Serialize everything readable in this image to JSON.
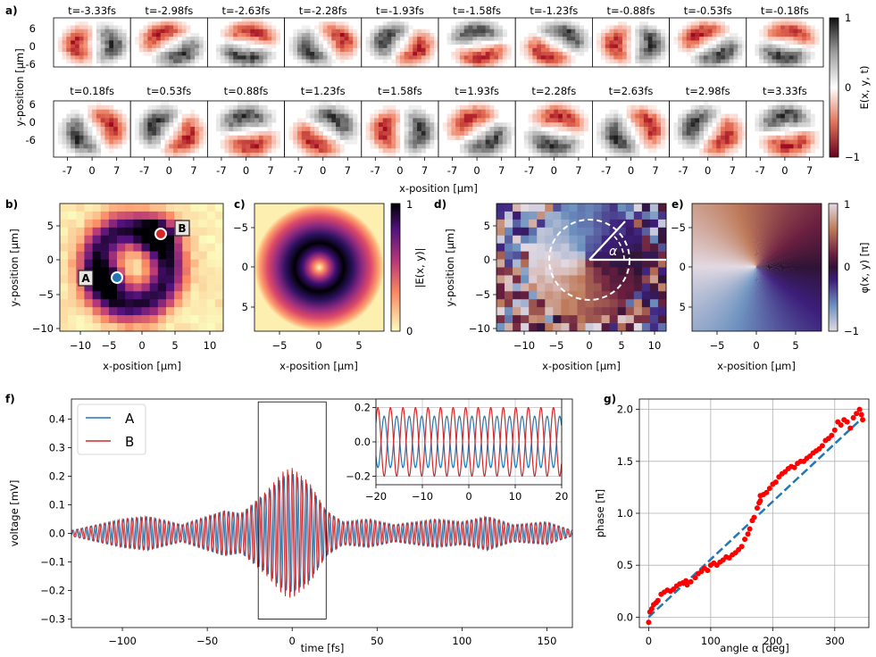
{
  "colors": {
    "series_a": "#1f77b4",
    "series_b": "#d62728",
    "scatter": "#ff0000",
    "fit": "#1f77b4",
    "grid": "#b0b0b0"
  },
  "panel_a": {
    "label": "a)",
    "row1_times": [
      "t=-3.33fs",
      "t=-2.98fs",
      "t=-2.63fs",
      "t=-2.28fs",
      "t=-1.93fs",
      "t=-1.58fs",
      "t=-1.23fs",
      "t=-0.88fs",
      "t=-0.53fs",
      "t=-0.18fs"
    ],
    "row2_times": [
      "t=0.18fs",
      "t=0.53fs",
      "t=0.88fs",
      "t=1.23fs",
      "t=1.58fs",
      "t=1.93fs",
      "t=2.28fs",
      "t=2.63fs",
      "t=2.98fs",
      "t=3.33fs"
    ],
    "y_ticks": [
      "6",
      "0",
      "-6"
    ],
    "x_ticks": [
      "-7",
      "0",
      "7"
    ],
    "ylabel": "y-position [μm]",
    "xlabel": "x-position [μm]",
    "colorbar_label": "E(x, y, t)",
    "colorbar_ticks": [
      "1",
      "0",
      "−1"
    ]
  },
  "panel_b": {
    "label": "b)",
    "x_ticks": [
      "−10",
      "−5",
      "0",
      "5",
      "10"
    ],
    "y_ticks": [
      "5",
      "0",
      "−5",
      "−10"
    ],
    "xlabel": "x-position [μm]",
    "ylabel": "y-position [μm]",
    "marker_a": "A",
    "marker_b": "B"
  },
  "panel_c": {
    "label": "c)",
    "x_ticks": [
      "−5",
      "0",
      "5"
    ],
    "y_ticks": [
      "−5",
      "0",
      "5"
    ],
    "xlabel": "x-position [μm]",
    "colorbar_label": "|E(x, y)|",
    "colorbar_ticks": [
      "1",
      "0"
    ]
  },
  "panel_d": {
    "label": "d)",
    "x_ticks": [
      "−10",
      "−5",
      "0",
      "5",
      "10"
    ],
    "y_ticks": [
      "5",
      "0",
      "−5",
      "−10"
    ],
    "xlabel": "x-position [μm]",
    "ylabel": "y-position [μm]",
    "angle_label": "α"
  },
  "panel_e": {
    "label": "e)",
    "x_ticks": [
      "−5",
      "0",
      "5"
    ],
    "y_ticks": [
      "−5",
      "0",
      "5"
    ],
    "xlabel": "x-position [μm]",
    "colorbar_label": "φ(x, y) [π]",
    "colorbar_ticks": [
      "1",
      "0",
      "−1"
    ]
  },
  "chart_data": [
    {
      "id": "f",
      "label": "f)",
      "type": "line",
      "xlabel": "time [fs]",
      "ylabel": "voltage [mV]",
      "xlim": [
        -130,
        165
      ],
      "ylim": [
        -0.33,
        0.47
      ],
      "x_ticks": [
        "−100",
        "−50",
        "0",
        "50",
        "100",
        "150"
      ],
      "y_ticks": [
        "0.4",
        "0.3",
        "0.2",
        "0.1",
        "0.0",
        "−0.1",
        "−0.2",
        "−0.3"
      ],
      "series": [
        {
          "name": "A",
          "period_fs": 2.7,
          "envelope": [
            [
              -130,
              0.01
            ],
            [
              -100,
              0.05
            ],
            [
              -85,
              0.06
            ],
            [
              -65,
              0.03
            ],
            [
              -50,
              0.06
            ],
            [
              -40,
              0.08
            ],
            [
              -30,
              0.07
            ],
            [
              -15,
              0.14
            ],
            [
              -5,
              0.2
            ],
            [
              0,
              0.21
            ],
            [
              10,
              0.17
            ],
            [
              20,
              0.08
            ],
            [
              30,
              0.04
            ],
            [
              45,
              0.05
            ],
            [
              60,
              0.03
            ],
            [
              85,
              0.05
            ],
            [
              100,
              0.04
            ],
            [
              115,
              0.06
            ],
            [
              130,
              0.03
            ],
            [
              150,
              0.04
            ],
            [
              165,
              0.01
            ]
          ]
        },
        {
          "name": "B",
          "period_fs": 2.7,
          "envelope": [
            [
              -130,
              0.01
            ],
            [
              -100,
              0.05
            ],
            [
              -85,
              0.06
            ],
            [
              -65,
              0.03
            ],
            [
              -50,
              0.06
            ],
            [
              -40,
              0.08
            ],
            [
              -30,
              0.07
            ],
            [
              -15,
              0.15
            ],
            [
              -5,
              0.22
            ],
            [
              0,
              0.23
            ],
            [
              10,
              0.18
            ],
            [
              20,
              0.08
            ],
            [
              30,
              0.04
            ],
            [
              45,
              0.05
            ],
            [
              60,
              0.03
            ],
            [
              85,
              0.05
            ],
            [
              100,
              0.04
            ],
            [
              115,
              0.06
            ],
            [
              130,
              0.03
            ],
            [
              150,
              0.04
            ],
            [
              165,
              0.01
            ]
          ]
        }
      ],
      "inset": {
        "xlim": [
          -20,
          20
        ],
        "ylim": [
          -0.25,
          0.25
        ],
        "x_ticks": [
          "−20",
          "−10",
          "0",
          "10",
          "20"
        ],
        "y_ticks": [
          "0.2",
          "0.0",
          "−0.2"
        ],
        "amplitude_a": 0.15,
        "amplitude_b": 0.2,
        "period_fs": 2.7
      },
      "zoom_box": {
        "x": [
          -20,
          20
        ],
        "y": [
          -0.3,
          0.46
        ]
      }
    },
    {
      "id": "g",
      "label": "g)",
      "type": "scatter",
      "xlabel": "angle α [deg]",
      "ylabel": "phase [π]",
      "xlim": [
        -15,
        355
      ],
      "ylim": [
        -0.1,
        2.1
      ],
      "x_ticks": [
        "0",
        "100",
        "200",
        "300"
      ],
      "y_ticks": [
        "2.0",
        "1.5",
        "1.0",
        "0.5",
        "0.0"
      ],
      "fit": {
        "x": [
          0,
          345
        ],
        "y": [
          0.0,
          1.92
        ]
      },
      "points": [
        [
          0,
          -0.05
        ],
        [
          2,
          0.05
        ],
        [
          5,
          0.08
        ],
        [
          8,
          0.12
        ],
        [
          12,
          0.14
        ],
        [
          15,
          0.16
        ],
        [
          20,
          0.22
        ],
        [
          25,
          0.24
        ],
        [
          30,
          0.26
        ],
        [
          35,
          0.25
        ],
        [
          40,
          0.27
        ],
        [
          45,
          0.3
        ],
        [
          50,
          0.32
        ],
        [
          55,
          0.33
        ],
        [
          60,
          0.35
        ],
        [
          62,
          0.31
        ],
        [
          68,
          0.34
        ],
        [
          75,
          0.38
        ],
        [
          80,
          0.42
        ],
        [
          85,
          0.44
        ],
        [
          90,
          0.47
        ],
        [
          95,
          0.45
        ],
        [
          100,
          0.5
        ],
        [
          105,
          0.52
        ],
        [
          110,
          0.5
        ],
        [
          115,
          0.53
        ],
        [
          120,
          0.55
        ],
        [
          125,
          0.58
        ],
        [
          130,
          0.57
        ],
        [
          135,
          0.6
        ],
        [
          140,
          0.62
        ],
        [
          145,
          0.65
        ],
        [
          150,
          0.68
        ],
        [
          155,
          0.75
        ],
        [
          160,
          0.8
        ],
        [
          163,
          0.85
        ],
        [
          167,
          0.93
        ],
        [
          170,
          0.96
        ],
        [
          175,
          1.05
        ],
        [
          178,
          1.1
        ],
        [
          180,
          1.12
        ],
        [
          180,
          1.17
        ],
        [
          185,
          1.18
        ],
        [
          190,
          1.2
        ],
        [
          195,
          1.24
        ],
        [
          200,
          1.28
        ],
        [
          205,
          1.3
        ],
        [
          210,
          1.35
        ],
        [
          215,
          1.38
        ],
        [
          220,
          1.4
        ],
        [
          225,
          1.43
        ],
        [
          230,
          1.45
        ],
        [
          235,
          1.44
        ],
        [
          240,
          1.48
        ],
        [
          245,
          1.5
        ],
        [
          250,
          1.5
        ],
        [
          255,
          1.53
        ],
        [
          260,
          1.55
        ],
        [
          265,
          1.58
        ],
        [
          270,
          1.6
        ],
        [
          275,
          1.62
        ],
        [
          280,
          1.65
        ],
        [
          285,
          1.7
        ],
        [
          290,
          1.72
        ],
        [
          295,
          1.75
        ],
        [
          300,
          1.8
        ],
        [
          305,
          1.88
        ],
        [
          310,
          1.85
        ],
        [
          315,
          1.9
        ],
        [
          320,
          1.88
        ],
        [
          325,
          1.82
        ],
        [
          330,
          1.92
        ],
        [
          335,
          1.96
        ],
        [
          340,
          2.0
        ],
        [
          343,
          1.95
        ],
        [
          345,
          1.9
        ]
      ]
    }
  ]
}
